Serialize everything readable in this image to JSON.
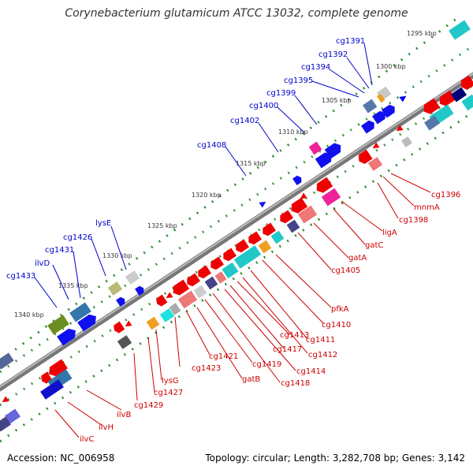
{
  "title": "Corynebacterium glutamicum ATCC 13032, complete genome",
  "footer": {
    "accession": "Accession: NC_006958",
    "topology": "Topology: circular; Length: 3,282,708 bp; Genes: 3,142"
  },
  "colors": {
    "backbone": "#777777",
    "tick": "#2e8b2e",
    "label_forward": "#0000cc",
    "label_reverse": "#cc0000"
  },
  "kbp_labels": [
    "1295 kbp",
    "1300 kbp",
    "1305 kbp",
    "1310 kbp",
    "1315 kbp",
    "1320 kbp",
    "1325 kbp",
    "1330 kbp",
    "1335 kbp",
    "1340 kbp"
  ],
  "forward_labels": [
    "cg1391",
    "cg1392",
    "cg1394",
    "cg1395",
    "cg1399",
    "cg1400",
    "cg1402",
    "cg1408",
    "lysE",
    "cg1426",
    "cg1431",
    "ilvD",
    "cg1433"
  ],
  "reverse_labels": [
    "cg1396",
    "mnmA",
    "cg1398",
    "ligA",
    "gatC",
    "gatA",
    "cg1405",
    "pfkA",
    "cg1410",
    "cg1411",
    "cg1412",
    "cg1413",
    "cg1417",
    "cg1414",
    "cg1418",
    "cg1419",
    "gatB",
    "cg1421",
    "cg1423",
    "lysG",
    "cg1427",
    "cg1429",
    "ilvB",
    "ilvH",
    "ilvC"
  ]
}
